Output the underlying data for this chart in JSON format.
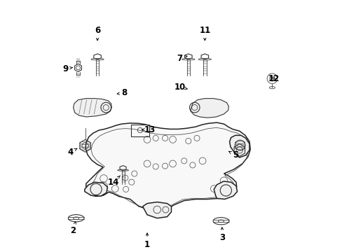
{
  "background_color": "#ffffff",
  "line_color": "#333333",
  "label_fontsize": 8.5,
  "arrow_color": "#000000",
  "parts_labels": {
    "1": [
      0.415,
      0.065,
      0.415,
      0.115
    ],
    "2": [
      0.155,
      0.115,
      0.165,
      0.155
    ],
    "3": [
      0.68,
      0.09,
      0.678,
      0.135
    ],
    "4": [
      0.145,
      0.39,
      0.175,
      0.408
    ],
    "5": [
      0.725,
      0.38,
      0.695,
      0.398
    ],
    "6": [
      0.24,
      0.82,
      0.24,
      0.775
    ],
    "7": [
      0.53,
      0.72,
      0.558,
      0.73
    ],
    "8": [
      0.335,
      0.6,
      0.3,
      0.595
    ],
    "9": [
      0.128,
      0.685,
      0.16,
      0.69
    ],
    "10": [
      0.53,
      0.62,
      0.558,
      0.613
    ],
    "11": [
      0.618,
      0.82,
      0.618,
      0.775
    ],
    "12": [
      0.86,
      0.65,
      0.855,
      0.655
    ],
    "13": [
      0.425,
      0.47,
      0.395,
      0.47
    ],
    "14": [
      0.295,
      0.285,
      0.32,
      0.308
    ]
  }
}
